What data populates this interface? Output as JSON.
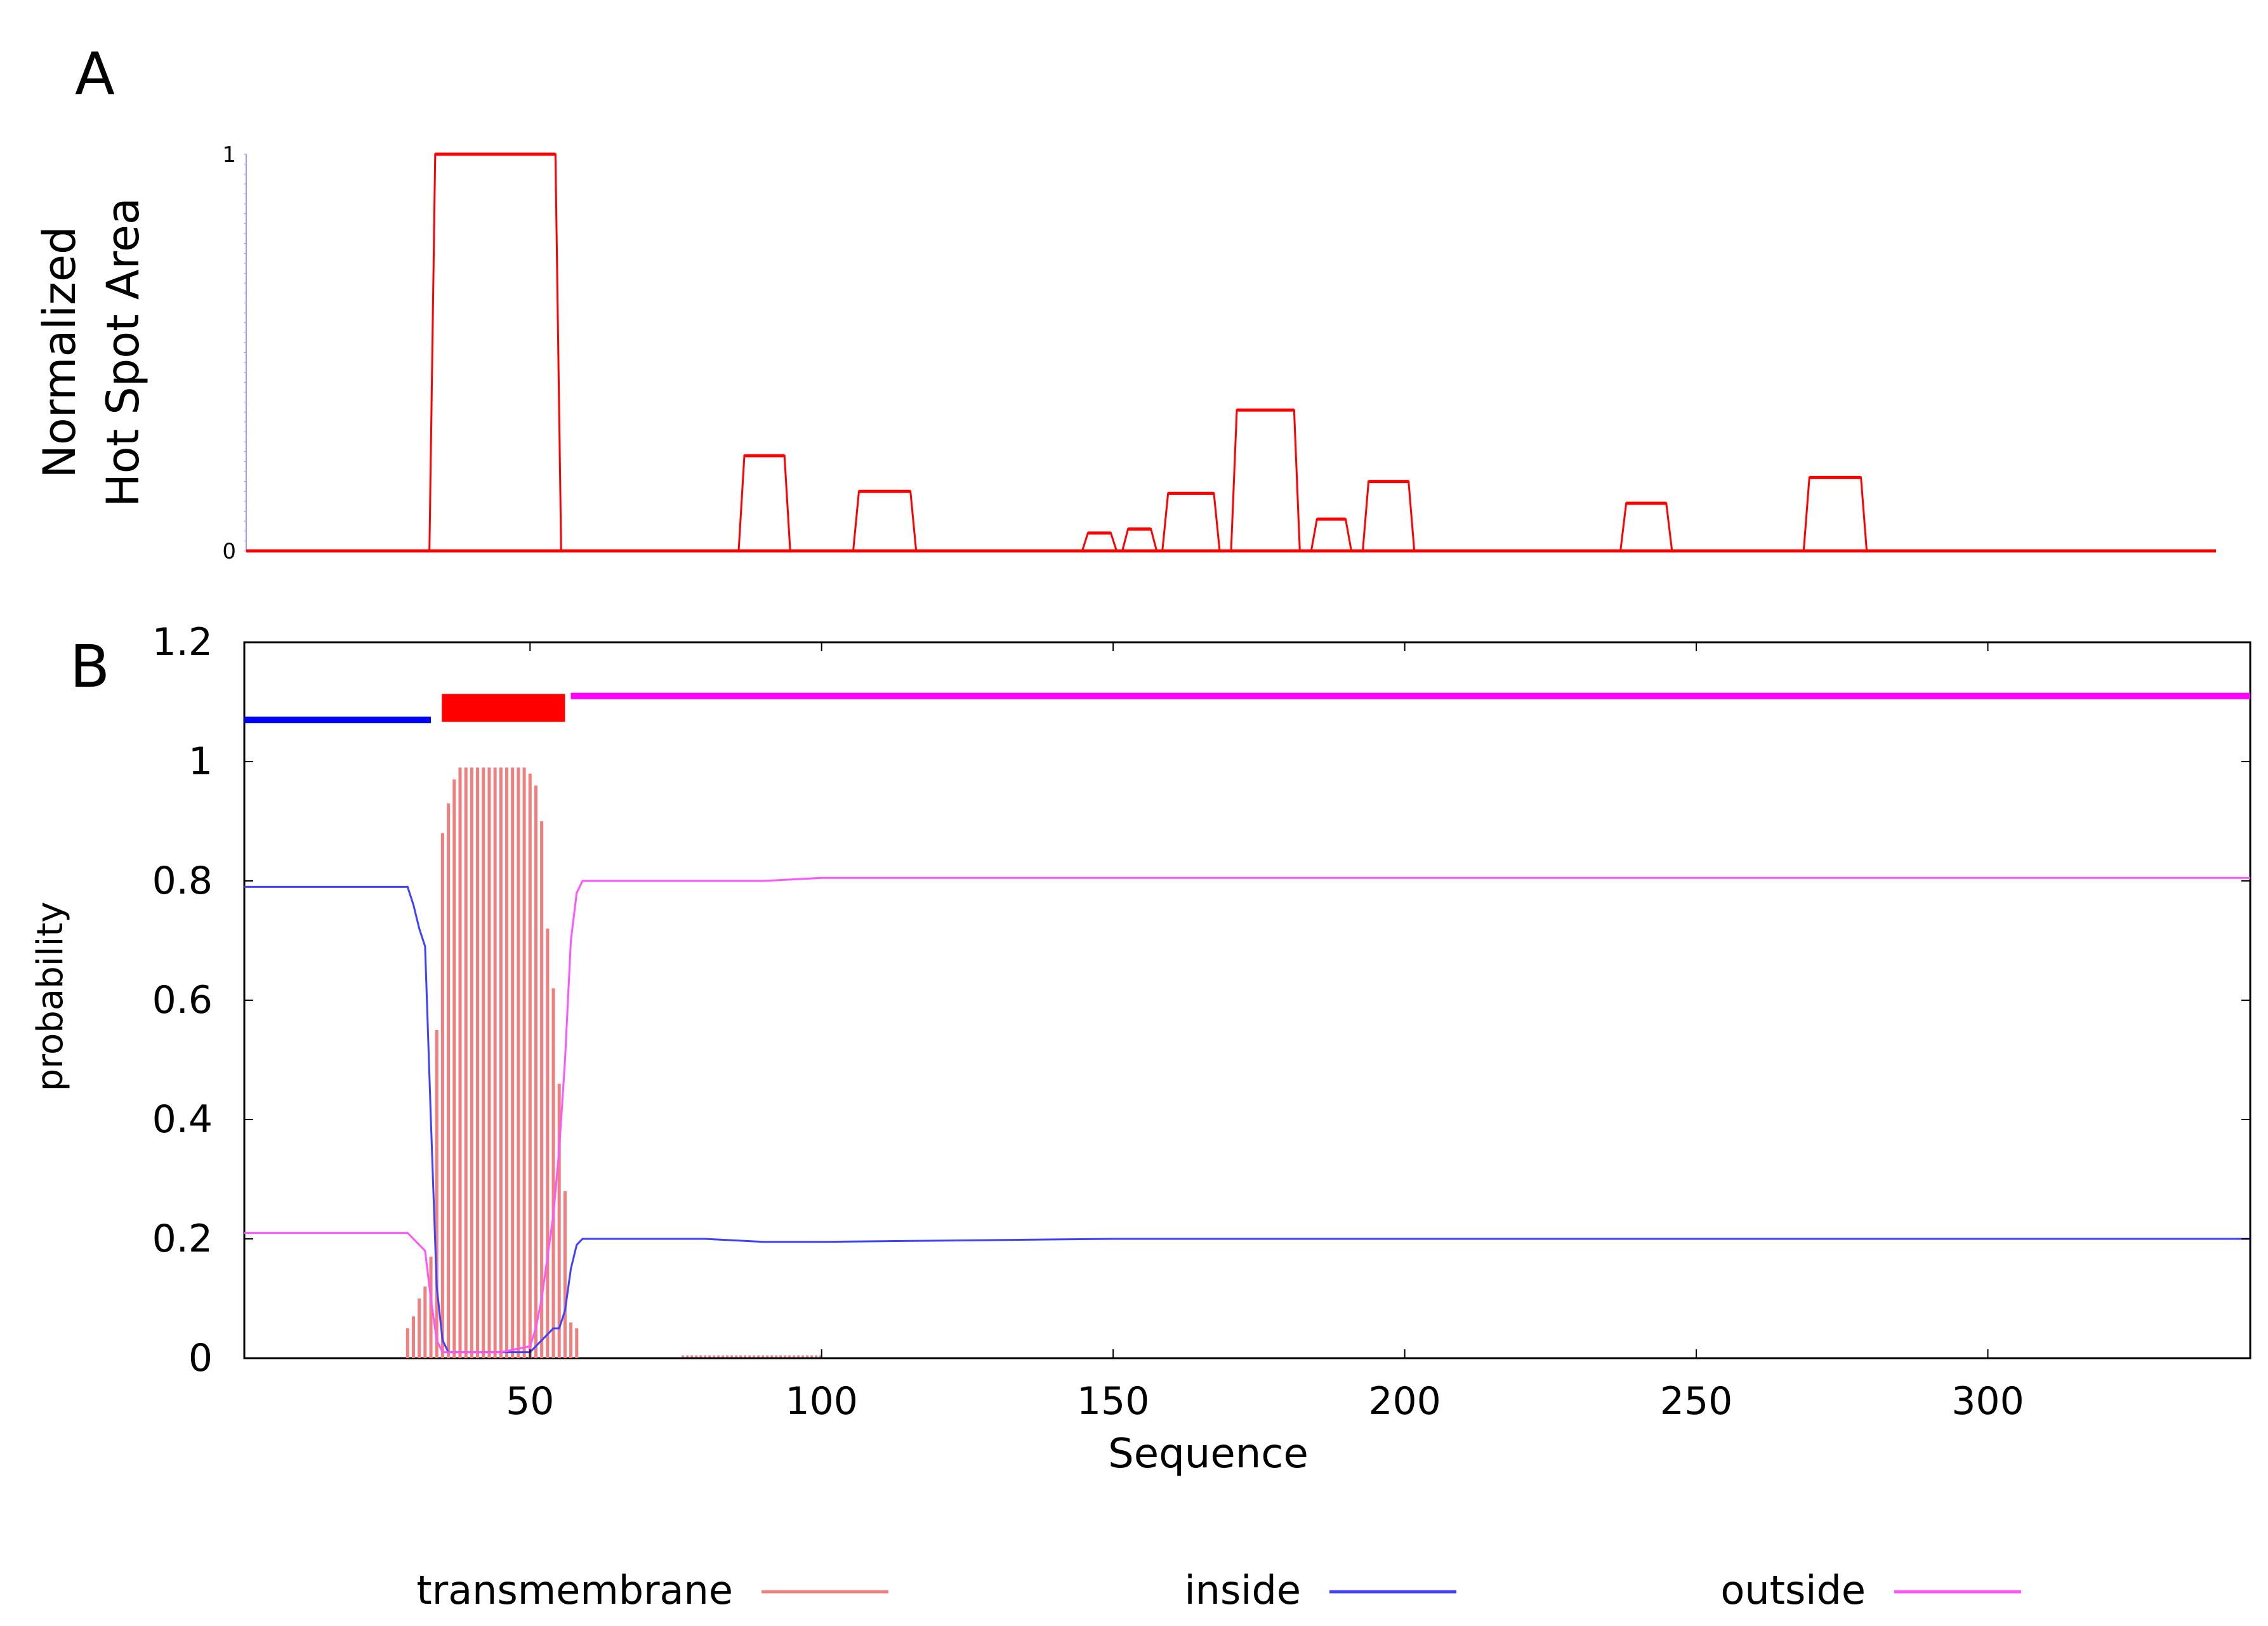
{
  "panels": {
    "a_label": "A",
    "b_label": "B"
  },
  "colors": {
    "hotspot": "#ff0000",
    "transmembrane": "#f08080",
    "inside": "#4040ff",
    "outside": "#ff55ff",
    "topo_inside": "#0000ff",
    "topo_tm": "#ff0000",
    "topo_outside": "#ff00ff"
  },
  "chart_data": [
    {
      "type": "line",
      "panel": "A",
      "ylabel_lines": [
        "Normalized",
        "Hot Spot Area"
      ],
      "xlabel": "",
      "ylim": [
        0,
        1
      ],
      "yticks": [
        "0",
        "1"
      ],
      "xlim": [
        1,
        345
      ],
      "series": [
        {
          "color": "#ff0000",
          "x": [
            1,
            33,
            34,
            55,
            56,
            87,
            88,
            95,
            96,
            107,
            108,
            117,
            118,
            147,
            148,
            152,
            153,
            154,
            155,
            159,
            160,
            161,
            162,
            170,
            171,
            173,
            174,
            184,
            185,
            187,
            188,
            193,
            194,
            196,
            197,
            204,
            205,
            241,
            242,
            249,
            250,
            273,
            274,
            283,
            284,
            345
          ],
          "y": [
            0,
            0,
            1,
            1,
            0,
            0,
            0.24,
            0.24,
            0,
            0,
            0.15,
            0.15,
            0,
            0,
            0.045,
            0.045,
            0,
            0,
            0.055,
            0.055,
            0,
            0,
            0.145,
            0.145,
            0,
            0,
            0.355,
            0.355,
            0,
            0,
            0.08,
            0.08,
            0,
            0,
            0.175,
            0.175,
            0,
            0,
            0.12,
            0.12,
            0,
            0,
            0.185,
            0.185,
            0,
            0
          ]
        }
      ]
    },
    {
      "type": "line",
      "panel": "B",
      "ylabel": "probability",
      "xlabel": "Sequence",
      "xlim": [
        1,
        345
      ],
      "ylim": [
        0,
        1.2
      ],
      "xticks": [
        50,
        100,
        150,
        200,
        250,
        300
      ],
      "yticks": [
        "0",
        "0.2",
        "0.4",
        "0.6",
        "0.8",
        "1",
        "1.2"
      ],
      "legend": {
        "position": "bottom",
        "entries": [
          "transmembrane",
          "inside",
          "outside"
        ]
      },
      "topology": [
        {
          "region": "inside",
          "start": 1,
          "end": 33,
          "y": 1.07
        },
        {
          "region": "transmembrane",
          "start": 34,
          "end": 56,
          "y": 1.09
        },
        {
          "region": "outside",
          "start": 57,
          "end": 345,
          "y": 1.11
        }
      ],
      "series": [
        {
          "name": "transmembrane",
          "style": "bars",
          "x": [
            29,
            30,
            31,
            32,
            33,
            34,
            35,
            36,
            37,
            38,
            39,
            40,
            41,
            42,
            43,
            44,
            45,
            46,
            47,
            48,
            49,
            50,
            51,
            52,
            53,
            54,
            55,
            56,
            57,
            58
          ],
          "y": [
            0.05,
            0.07,
            0.1,
            0.12,
            0.17,
            0.55,
            0.88,
            0.93,
            0.97,
            0.99,
            0.99,
            0.99,
            0.99,
            0.99,
            0.99,
            0.99,
            0.99,
            0.99,
            0.99,
            0.99,
            0.99,
            0.98,
            0.96,
            0.9,
            0.72,
            0.62,
            0.46,
            0.28,
            0.06,
            0.05
          ]
        },
        {
          "name": "inside",
          "x": [
            1,
            10,
            20,
            29,
            30,
            31,
            32,
            33,
            34,
            35,
            36,
            38,
            40,
            45,
            50,
            51,
            52,
            53,
            54,
            55,
            56,
            57,
            58,
            59,
            60,
            70,
            80,
            90,
            100,
            150,
            200,
            250,
            300,
            345
          ],
          "y": [
            0.79,
            0.79,
            0.79,
            0.79,
            0.76,
            0.72,
            0.69,
            0.4,
            0.12,
            0.03,
            0.01,
            0.01,
            0.01,
            0.01,
            0.01,
            0.02,
            0.03,
            0.04,
            0.05,
            0.05,
            0.08,
            0.15,
            0.19,
            0.2,
            0.2,
            0.2,
            0.2,
            0.195,
            0.195,
            0.2,
            0.2,
            0.2,
            0.2,
            0.2
          ]
        },
        {
          "name": "outside",
          "x": [
            1,
            10,
            20,
            29,
            30,
            31,
            32,
            33,
            34,
            35,
            36,
            38,
            40,
            45,
            50,
            51,
            52,
            53,
            54,
            55,
            56,
            57,
            58,
            59,
            60,
            70,
            80,
            90,
            100,
            150,
            200,
            250,
            300,
            345
          ],
          "y": [
            0.21,
            0.21,
            0.21,
            0.21,
            0.2,
            0.19,
            0.18,
            0.1,
            0.03,
            0.01,
            0.01,
            0.01,
            0.01,
            0.01,
            0.02,
            0.05,
            0.1,
            0.17,
            0.24,
            0.35,
            0.5,
            0.7,
            0.78,
            0.8,
            0.8,
            0.8,
            0.8,
            0.8,
            0.805,
            0.805,
            0.805,
            0.805,
            0.805,
            0.805
          ]
        }
      ]
    }
  ]
}
